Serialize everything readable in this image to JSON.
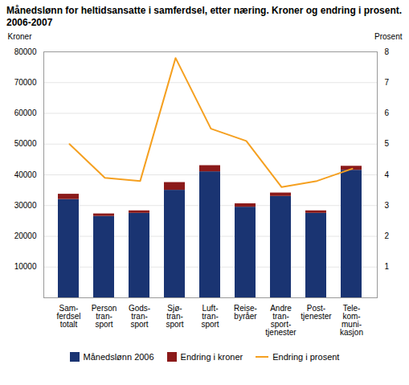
{
  "chart_data": {
    "type": "bar",
    "title": "Månedslønn for heltidsansatte i samferdsel, etter næring. Kroner og endring i prosent. 2006-2007",
    "categories": [
      "Sam-\nferdsel\ntotalt",
      "Person\ntran-\nsport",
      "Gods-\ntran-\nsport",
      "Sjø-\ntran-\nsport",
      "Luft-\ntran-\nsport",
      "Reise-\nbyråer",
      "Andre\ntran-\nsport-\ntjenester",
      "Post-\ntjenester",
      "Tele-\nkom-\nmuni-\nkasjon"
    ],
    "series": [
      {
        "name": "Månedslønn 2006",
        "type": "bar",
        "color": "#1a3472",
        "values": [
          32000,
          26500,
          27500,
          35000,
          41000,
          29500,
          33000,
          27500,
          41500
        ]
      },
      {
        "name": "Endring i kroner",
        "type": "bar",
        "color": "#8b1a1a",
        "values": [
          1700,
          800,
          800,
          2500,
          2000,
          1100,
          1100,
          800,
          1300
        ]
      },
      {
        "name": "Endring i prosent",
        "type": "line",
        "color": "#f5a020",
        "axis": "y2",
        "values": [
          5.0,
          3.9,
          3.8,
          7.8,
          5.5,
          5.1,
          3.6,
          3.8,
          4.2
        ]
      }
    ],
    "stacked": true,
    "ylabel": "Kroner",
    "y2label": "Prosent",
    "ylim": [
      0,
      80000
    ],
    "yticks": [
      10000,
      20000,
      30000,
      40000,
      50000,
      60000,
      70000,
      80000
    ],
    "y2lim": [
      0,
      8
    ],
    "y2ticks": [
      1,
      2,
      3,
      4,
      5,
      6,
      7,
      8
    ],
    "grid": true,
    "legend": "bottom"
  }
}
